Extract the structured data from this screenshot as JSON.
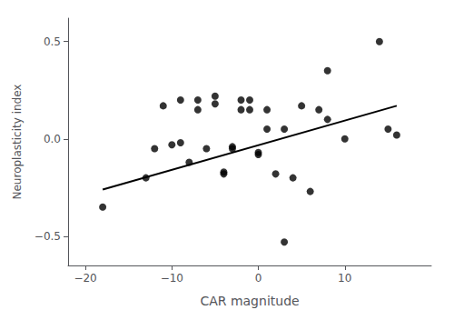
{
  "chart_data": {
    "type": "scatter",
    "xlabel": "CAR magnitude",
    "ylabel": "Neuroplasticity index",
    "xlim": [
      -22,
      20
    ],
    "ylim": [
      -0.65,
      0.62
    ],
    "xticks": [
      {
        "value": -20,
        "label": "−20"
      },
      {
        "value": -10,
        "label": "−10"
      },
      0,
      10
    ],
    "yticks": [
      {
        "value": -0.5,
        "label": "−0.5"
      },
      {
        "value": 0.0,
        "label": "0.0"
      },
      0.5
    ],
    "grid": false,
    "series": [
      {
        "type": "scatter",
        "color": "#000000",
        "marker": "circle",
        "x": [
          -18,
          -13,
          -12,
          -11,
          -10,
          -9,
          -9,
          -8,
          -7,
          -7,
          -6,
          -5,
          -5,
          -4,
          -4,
          -3,
          -3,
          -2,
          -2,
          -1,
          -1,
          0,
          0,
          1,
          1,
          2,
          3,
          3,
          4,
          5,
          6,
          7,
          8,
          8,
          10,
          14,
          15,
          16
        ],
        "values": [
          -0.35,
          -0.2,
          -0.05,
          0.17,
          -0.03,
          -0.02,
          0.2,
          -0.12,
          0.15,
          0.2,
          -0.05,
          0.22,
          0.18,
          -0.17,
          -0.18,
          -0.05,
          -0.04,
          0.15,
          0.2,
          0.15,
          0.2,
          -0.08,
          -0.07,
          0.15,
          0.05,
          -0.18,
          -0.53,
          0.05,
          -0.2,
          0.17,
          -0.27,
          0.15,
          0.35,
          0.1,
          0.0,
          0.5,
          0.05,
          0.02
        ]
      },
      {
        "type": "line",
        "color": "#000000",
        "line_style": "solid",
        "x": [
          -18,
          16
        ],
        "values": [
          -0.26,
          0.17
        ]
      }
    ]
  }
}
